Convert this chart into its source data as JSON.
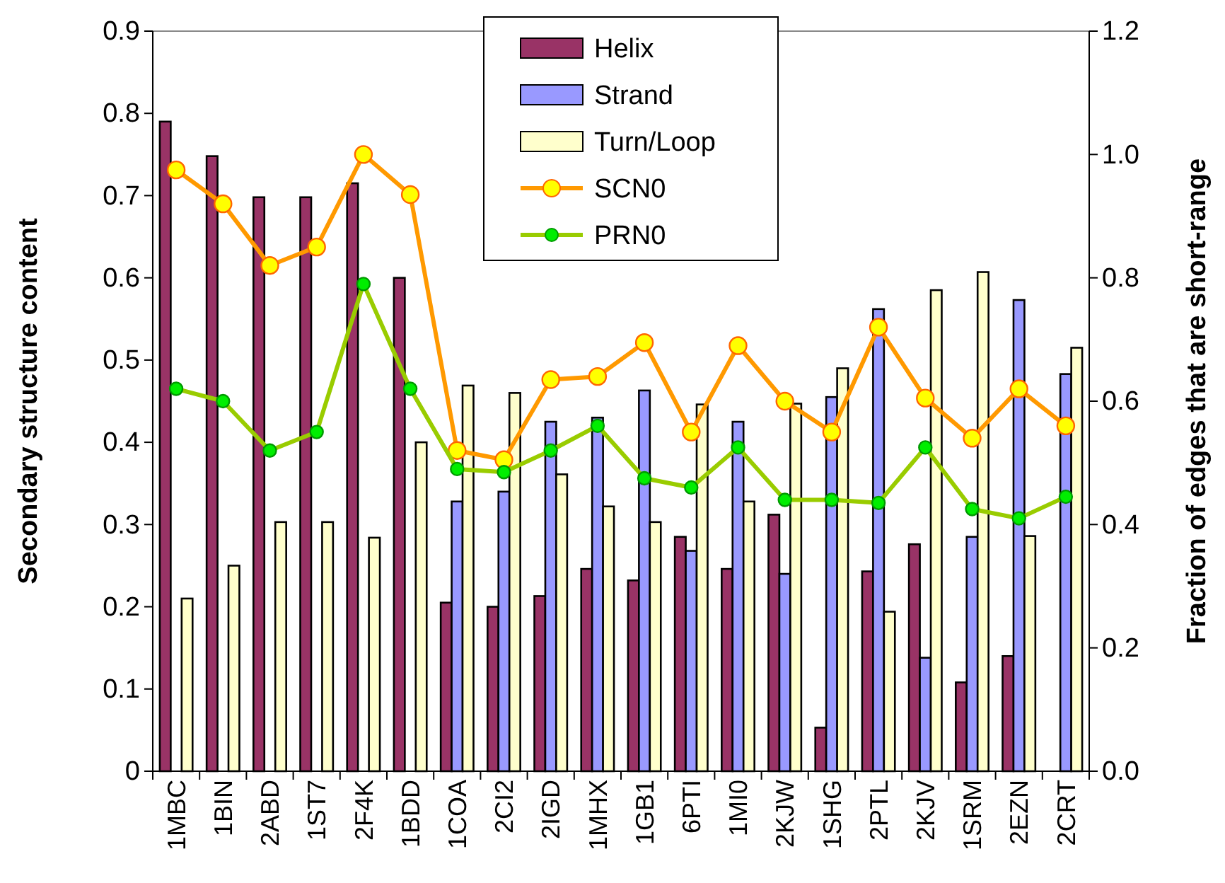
{
  "chart_data": {
    "type": "bar",
    "ylabel": "Secondary structure content",
    "y2label": "Fraction of edges that are short-range",
    "categories": [
      "1MBC",
      "1BIN",
      "2ABD",
      "1ST7",
      "2F4K",
      "1BDD",
      "1COA",
      "2CI2",
      "2IGD",
      "1MHX",
      "1GB1",
      "6PTI",
      "1MI0",
      "2KJW",
      "1SHG",
      "2PTL",
      "2KJV",
      "1SRM",
      "2EZN",
      "2CRT"
    ],
    "series": [
      {
        "name": "Helix",
        "color": "#993366",
        "values": [
          0.79,
          0.748,
          0.698,
          0.698,
          0.715,
          0.6,
          0.205,
          0.2,
          0.213,
          0.246,
          0.232,
          0.285,
          0.246,
          0.312,
          0.053,
          0.243,
          0.276,
          0.108,
          0.14,
          null
        ]
      },
      {
        "name": "Strand",
        "color": "#9999ff",
        "values": [
          null,
          null,
          null,
          null,
          null,
          null,
          0.328,
          0.34,
          0.425,
          0.43,
          0.463,
          0.268,
          0.425,
          0.24,
          0.455,
          0.562,
          0.138,
          0.285,
          0.573,
          0.483
        ]
      },
      {
        "name": "Turn/Loop",
        "color": "#ffffcc",
        "values": [
          0.21,
          0.25,
          0.303,
          0.303,
          0.284,
          0.4,
          0.469,
          0.46,
          0.361,
          0.322,
          0.303,
          0.446,
          0.328,
          0.447,
          0.49,
          0.194,
          0.585,
          0.607,
          0.286,
          0.515
        ]
      },
      {
        "name": "SCN0",
        "type": "line",
        "axis": "y2",
        "color": "#ff9900",
        "values": [
          0.975,
          0.92,
          0.82,
          0.85,
          1.0,
          0.935,
          0.52,
          0.505,
          0.635,
          0.64,
          0.695,
          0.55,
          0.69,
          0.6,
          0.55,
          0.72,
          0.605,
          0.54,
          0.62,
          0.56
        ]
      },
      {
        "name": "PRN0",
        "type": "line",
        "axis": "y2",
        "color": "#99cc00",
        "values": [
          0.62,
          0.6,
          0.52,
          0.55,
          0.79,
          0.62,
          0.49,
          0.485,
          0.52,
          0.56,
          0.475,
          0.46,
          0.525,
          0.44,
          0.44,
          0.435,
          0.525,
          0.425,
          0.41,
          0.445
        ]
      }
    ],
    "ylim": [
      0,
      0.9
    ],
    "yticks": [
      {
        "value": 0,
        "label": "0"
      },
      0.1,
      0.2,
      0.3,
      0.4,
      0.5,
      0.6,
      0.7,
      0.8,
      0.9
    ],
    "y2lim": [
      0,
      1.2
    ],
    "y2ticks": [
      {
        "value": 0,
        "label": "0.0"
      },
      {
        "value": 0.2,
        "label": "0.2"
      },
      {
        "value": 0.4,
        "label": "0.4"
      },
      {
        "value": 0.6,
        "label": "0.6"
      },
      {
        "value": 0.8,
        "label": "0.8"
      },
      {
        "value": 1,
        "label": "1.0"
      },
      {
        "value": 1.2,
        "label": "1.2"
      }
    ],
    "legend": "top",
    "marker": "circle",
    "grid": false
  }
}
